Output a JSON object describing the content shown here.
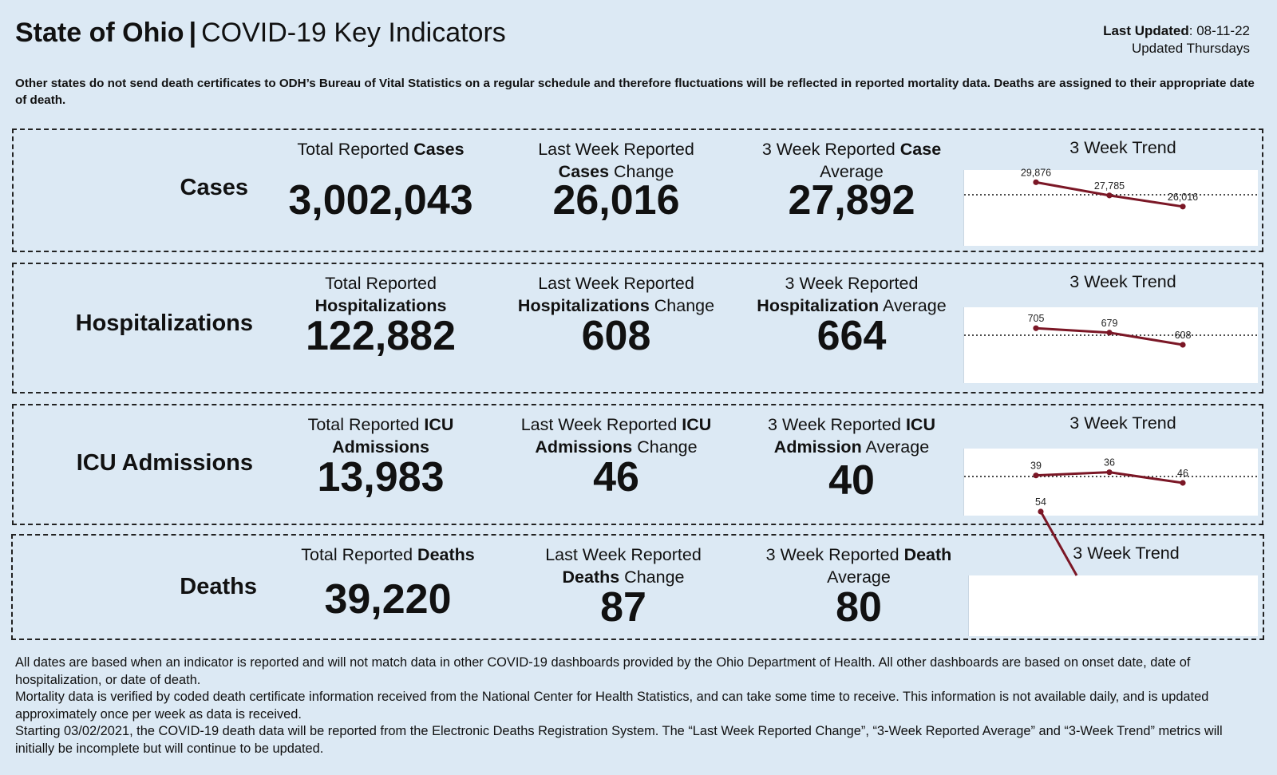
{
  "header": {
    "state": "State of Ohio",
    "separator": "|",
    "title": "COVID-19 Key Indicators",
    "last_updated_label": "Last Updated",
    "last_updated_value": ": 08-11-22",
    "update_schedule": "Updated Thursdays"
  },
  "notice": "Other states do not send death certificates to ODH’s Bureau of Vital Statistics on a regular schedule and therefore fluctuations will be reflected in reported mortality data. Deaths are assigned to their appropriate date of death.",
  "colors": {
    "background": "#dce9f4",
    "trend_line": "#7b1726"
  },
  "rows": {
    "cases": {
      "label": "Cases",
      "total": {
        "pre": "Total Reported ",
        "bold": "Cases",
        "post": "",
        "value": "3,002,043"
      },
      "change": {
        "pre": "Last Week Reported ",
        "bold": "Cases",
        "post": " Change",
        "value": "26,016"
      },
      "average": {
        "pre": "3 Week Reported ",
        "bold": "Case",
        "post": " Average",
        "value": "27,892"
      },
      "trend": {
        "title": "3 Week Trend",
        "labels": [
          "29,876",
          "27,785",
          "26,016"
        ],
        "values": [
          29876,
          27785,
          26016
        ],
        "reference": 27892
      }
    },
    "hosp": {
      "label": "Hospitalizations",
      "total": {
        "pre": "Total Reported ",
        "bold": "Hospitalizations",
        "post": "",
        "value": "122,882"
      },
      "change": {
        "pre": "Last Week Reported ",
        "bold": "Hospitalizations",
        "post": " Change",
        "value": "608"
      },
      "average": {
        "pre": "3 Week Reported ",
        "bold": "Hospitalization",
        "post": " Average",
        "value": "664"
      },
      "trend": {
        "title": "3 Week Trend",
        "labels": [
          "705",
          "679",
          "608"
        ],
        "values": [
          705,
          679,
          608
        ],
        "reference": 664
      }
    },
    "icu": {
      "label": "ICU Admissions",
      "total": {
        "pre": "Total Reported ",
        "bold": "ICU Admissions",
        "post": "",
        "value": "13,983"
      },
      "change": {
        "pre": "Last Week Reported ",
        "bold": "ICU Admissions",
        "post": " Change",
        "value": "46"
      },
      "average": {
        "pre": "3 Week Reported ",
        "bold": "ICU Admission",
        "post": " Average",
        "value": "40"
      },
      "trend": {
        "title": "3 Week Trend",
        "labels": [
          "39",
          "36",
          "46"
        ],
        "values": [
          39,
          36,
          46
        ],
        "reference": 40
      }
    },
    "deaths": {
      "label": "Deaths",
      "total": {
        "pre": "Total Reported ",
        "bold": "Deaths",
        "post": "",
        "value": "39,220"
      },
      "change": {
        "pre": "Last Week Reported ",
        "bold": "Deaths",
        "post": " Change",
        "value": "87"
      },
      "average": {
        "pre": "3 Week Reported ",
        "bold": "Death",
        "post": " Average",
        "value": "80"
      },
      "trend": {
        "title": "3 Week Trend",
        "labels": [
          "54"
        ],
        "values": [
          54
        ],
        "reference": 80
      }
    }
  },
  "footer": [
    "All dates are based when an indicator is reported and will not match data in other COVID-19 dashboards provided by the Ohio Department of Health. All other dashboards are based on onset date, date of hospitalization, or date of death.",
    "Mortality data is verified by coded death certificate information received from the National Center for Health Statistics, and can take some time to receive. This information is not available daily, and is updated approximately once per week as data is received.",
    "Starting 03/02/2021, the COVID-19 death data will be reported from the Electronic Deaths Registration System. The “Last Week Reported Change”, “3-Week Reported Average” and “3-Week Trend” metrics will initially be incomplete but will continue to be updated."
  ]
}
